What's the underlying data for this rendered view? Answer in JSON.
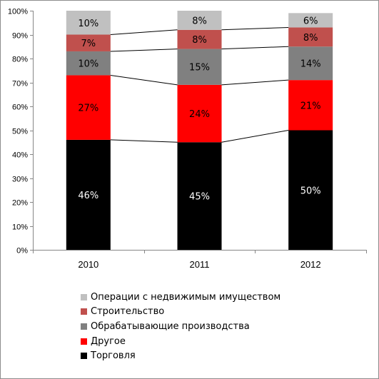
{
  "chart_data": {
    "type": "bar",
    "stacked": true,
    "title": "",
    "xlabel": "",
    "ylabel": "",
    "ylim": [
      0,
      100
    ],
    "y_ticks": [
      "0%",
      "10%",
      "20%",
      "30%",
      "40%",
      "50%",
      "60%",
      "70%",
      "80%",
      "90%",
      "100%"
    ],
    "categories": [
      "2010",
      "2011",
      "2012"
    ],
    "series_lines": true,
    "legend_position": "bottom",
    "series": [
      {
        "name": "Торговля",
        "color": "#000000",
        "label_color": "#ffffff",
        "values": [
          46,
          45,
          50
        ],
        "labels": [
          "46%",
          "45%",
          "50%"
        ]
      },
      {
        "name": "Другое",
        "color": "#ff0000",
        "label_color": "#000000",
        "values": [
          27,
          24,
          21
        ],
        "labels": [
          "27%",
          "24%",
          "21%"
        ]
      },
      {
        "name": "Обрабатывающие производства",
        "color": "#808080",
        "label_color": "#000000",
        "values": [
          10,
          15,
          14
        ],
        "labels": [
          "10%",
          "15%",
          "14%"
        ]
      },
      {
        "name": "Строительство",
        "color": "#c0504d",
        "label_color": "#000000",
        "values": [
          7,
          8,
          8
        ],
        "labels": [
          "7%",
          "8%",
          "8%"
        ]
      },
      {
        "name": "Операции с недвижимым имуществом",
        "color": "#c0c0c0",
        "label_color": "#000000",
        "values": [
          10,
          8,
          6
        ],
        "labels": [
          "10%",
          "8%",
          "6%"
        ]
      }
    ]
  }
}
